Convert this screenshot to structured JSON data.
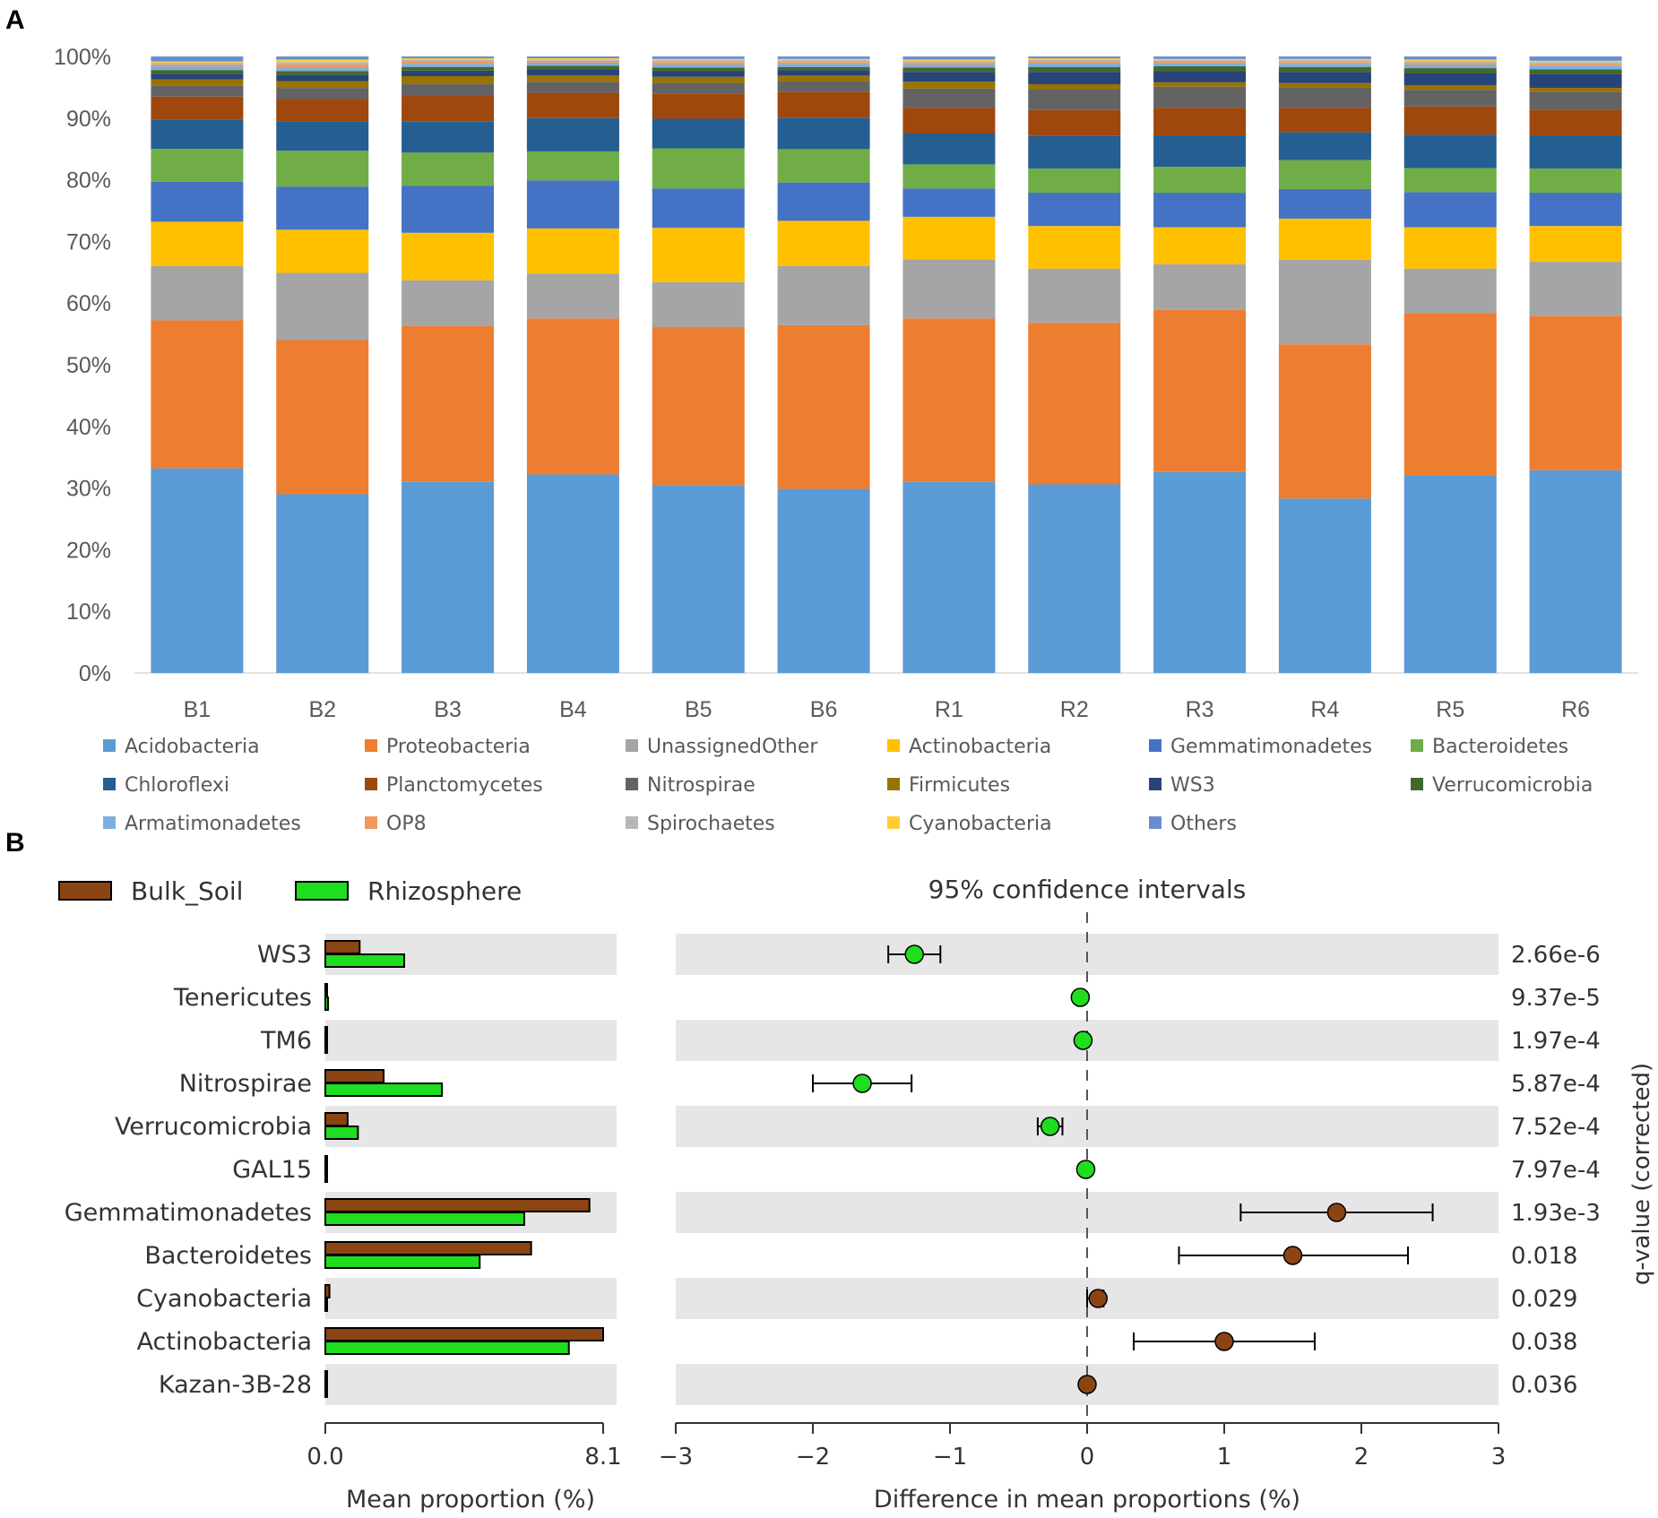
{
  "panels": {
    "a": "A",
    "b": "B"
  },
  "chart_data": [
    {
      "type": "bar",
      "stacked": true,
      "normalized": true,
      "y_ticks": [
        "0%",
        "10%",
        "20%",
        "30%",
        "40%",
        "50%",
        "60%",
        "70%",
        "80%",
        "90%",
        "100%"
      ],
      "ylim": [
        0,
        100
      ],
      "categories": [
        "B1",
        "B2",
        "B3",
        "B4",
        "B5",
        "B6",
        "R1",
        "R2",
        "R3",
        "R4",
        "R5",
        "R6"
      ],
      "legend_position": "bottom",
      "series": [
        {
          "name": "Acidobacteria",
          "color": "#5b9bd5",
          "values": [
            33.2,
            29.0,
            31.0,
            32.2,
            30.5,
            29.8,
            31.0,
            30.6,
            32.6,
            28.3,
            32.1,
            32.9
          ]
        },
        {
          "name": "Proteobacteria",
          "color": "#ed7d31",
          "values": [
            24.0,
            25.0,
            25.3,
            25.3,
            25.6,
            26.5,
            26.5,
            26.2,
            26.3,
            25.0,
            26.3,
            25.0
          ]
        },
        {
          "name": "UnassignedOther",
          "color": "#a5a5a5",
          "values": [
            8.8,
            10.9,
            7.4,
            7.3,
            7.3,
            9.6,
            9.6,
            8.8,
            7.4,
            13.7,
            7.2,
            8.8
          ]
        },
        {
          "name": "Actinobacteria",
          "color": "#ffc000",
          "values": [
            7.2,
            7.0,
            7.7,
            7.3,
            8.8,
            7.3,
            6.9,
            6.9,
            6.0,
            6.7,
            6.7,
            5.8
          ]
        },
        {
          "name": "Gemmatimonadetes",
          "color": "#4472c4",
          "values": [
            6.5,
            7.0,
            7.6,
            7.8,
            6.4,
            6.2,
            4.6,
            5.4,
            5.6,
            4.8,
            5.7,
            5.4
          ]
        },
        {
          "name": "Bacteroidetes",
          "color": "#70ad47",
          "values": [
            5.3,
            5.8,
            5.4,
            4.7,
            6.5,
            5.4,
            3.9,
            3.9,
            4.2,
            4.7,
            3.9,
            3.9
          ]
        },
        {
          "name": "Chloroflexi",
          "color": "#255e91",
          "values": [
            4.7,
            4.7,
            5.1,
            5.4,
            4.8,
            5.1,
            5.0,
            5.3,
            5.1,
            4.5,
            5.4,
            5.4
          ]
        },
        {
          "name": "Planctomycetes",
          "color": "#9e480e",
          "values": [
            3.8,
            3.7,
            4.1,
            4.1,
            4.1,
            4.2,
            4.2,
            4.2,
            4.5,
            4.0,
            4.6,
            4.2
          ]
        },
        {
          "name": "Nitrospirae",
          "color": "#636363",
          "values": [
            1.8,
            1.8,
            1.9,
            1.8,
            1.7,
            1.7,
            3.1,
            3.4,
            3.4,
            3.3,
            2.7,
            2.9
          ]
        },
        {
          "name": "Firmicutes",
          "color": "#997300",
          "values": [
            1.0,
            1.1,
            1.3,
            1.0,
            1.0,
            0.9,
            1.1,
            0.8,
            0.7,
            0.7,
            0.7,
            0.6
          ]
        },
        {
          "name": "WS3",
          "color": "#264478",
          "values": [
            0.9,
            1.0,
            0.9,
            1.0,
            0.9,
            0.9,
            1.6,
            2.0,
            1.8,
            1.8,
            2.0,
            2.3
          ]
        },
        {
          "name": "Verrucomicrobia",
          "color": "#43682b",
          "values": [
            0.6,
            0.6,
            0.6,
            0.6,
            0.6,
            0.5,
            0.7,
            0.8,
            0.8,
            0.8,
            0.8,
            0.7
          ]
        },
        {
          "name": "Armatimonadetes",
          "color": "#7cafdd",
          "values": [
            0.6,
            0.5,
            0.5,
            0.5,
            0.5,
            0.5,
            0.5,
            0.6,
            0.5,
            0.5,
            0.6,
            0.6
          ]
        },
        {
          "name": "OP8",
          "color": "#f1975a",
          "values": [
            0.3,
            0.6,
            0.4,
            0.3,
            0.4,
            0.3,
            0.3,
            0.3,
            0.3,
            0.3,
            0.3,
            0.3
          ]
        },
        {
          "name": "Spirochaetes",
          "color": "#b7b7b7",
          "values": [
            0.3,
            0.4,
            0.3,
            0.2,
            0.3,
            0.3,
            0.3,
            0.3,
            0.2,
            0.3,
            0.3,
            0.3
          ]
        },
        {
          "name": "Cyanobacteria",
          "color": "#ffcd33",
          "values": [
            0.2,
            0.4,
            0.2,
            0.2,
            0.2,
            0.2,
            0.2,
            0.2,
            0.2,
            0.2,
            0.2,
            0.2
          ]
        },
        {
          "name": "Others",
          "color": "#698ed0",
          "values": [
            0.8,
            0.5,
            0.3,
            0.3,
            0.4,
            0.4,
            0.5,
            0.3,
            0.4,
            0.4,
            0.5,
            0.7
          ]
        }
      ]
    },
    {
      "type": "bar",
      "orientation": "horizontal",
      "xlabel": "Mean proportion (%)",
      "xlim": [
        0,
        8.1
      ],
      "x_tick_labels": [
        "0.0",
        "8.1"
      ],
      "categories": [
        "WS3",
        "Tenericutes",
        "TM6",
        "Nitrospirae",
        "Verrucomicrobia",
        "GAL15",
        "Gemmatimonadetes",
        "Bacteroidetes",
        "Cyanobacteria",
        "Actinobacteria",
        "Kazan-3B-28"
      ],
      "legend_position": "top-left",
      "series": [
        {
          "name": "Bulk_Soil",
          "color": "#8b4513",
          "values": [
            1.0,
            0.05,
            0.03,
            1.7,
            0.65,
            0.01,
            7.7,
            6.0,
            0.12,
            8.1,
            0.01
          ]
        },
        {
          "name": "Rhizosphere",
          "color": "#1fdd1f",
          "values": [
            2.3,
            0.08,
            0.05,
            3.4,
            0.95,
            0.02,
            5.8,
            4.5,
            0.05,
            7.1,
            0.02
          ]
        }
      ]
    },
    {
      "type": "scatter",
      "title": "95% confidence intervals",
      "xlabel": "Difference in mean proportions (%)",
      "xlim": [
        -3,
        3
      ],
      "x_tick_labels": [
        "−3",
        "−2",
        "−1",
        "0",
        "1",
        "2",
        "3"
      ],
      "y2label": "q-value (corrected)",
      "categories": [
        "WS3",
        "Tenericutes",
        "TM6",
        "Nitrospirae",
        "Verrucomicrobia",
        "GAL15",
        "Gemmatimonadetes",
        "Bacteroidetes",
        "Cyanobacteria",
        "Actinobacteria",
        "Kazan-3B-28"
      ],
      "points": [
        {
          "label": "WS3",
          "diff": -1.26,
          "ci": [
            -1.45,
            -1.07
          ],
          "q_value": "2.66e-6",
          "higher_in": "Rhizosphere"
        },
        {
          "label": "Tenericutes",
          "diff": -0.05,
          "ci": [
            -0.07,
            -0.03
          ],
          "q_value": "9.37e-5",
          "higher_in": "Rhizosphere"
        },
        {
          "label": "TM6",
          "diff": -0.03,
          "ci": [
            -0.05,
            -0.01
          ],
          "q_value": "1.97e-4",
          "higher_in": "Rhizosphere"
        },
        {
          "label": "Nitrospirae",
          "diff": -1.64,
          "ci": [
            -2.0,
            -1.28
          ],
          "q_value": "5.87e-4",
          "higher_in": "Rhizosphere"
        },
        {
          "label": "Verrucomicrobia",
          "diff": -0.27,
          "ci": [
            -0.36,
            -0.18
          ],
          "q_value": "7.52e-4",
          "higher_in": "Rhizosphere"
        },
        {
          "label": "GAL15",
          "diff": -0.01,
          "ci": [
            -0.02,
            0.0
          ],
          "q_value": "7.97e-4",
          "higher_in": "Rhizosphere"
        },
        {
          "label": "Gemmatimonadetes",
          "diff": 1.82,
          "ci": [
            1.12,
            2.52
          ],
          "q_value": "1.93e-3",
          "higher_in": "Bulk_Soil"
        },
        {
          "label": "Bacteroidetes",
          "diff": 1.5,
          "ci": [
            0.67,
            2.34
          ],
          "q_value": "0.018",
          "higher_in": "Bulk_Soil"
        },
        {
          "label": "Cyanobacteria",
          "diff": 0.08,
          "ci": [
            0.0,
            0.12
          ],
          "q_value": "0.029",
          "higher_in": "Bulk_Soil"
        },
        {
          "label": "Actinobacteria",
          "diff": 1.0,
          "ci": [
            0.34,
            1.66
          ],
          "q_value": "0.038",
          "higher_in": "Bulk_Soil"
        },
        {
          "label": "Kazan-3B-28",
          "diff": 0.0,
          "ci": [
            -0.01,
            0.01
          ],
          "q_value": "0.036",
          "higher_in": "Bulk_Soil"
        }
      ]
    }
  ]
}
